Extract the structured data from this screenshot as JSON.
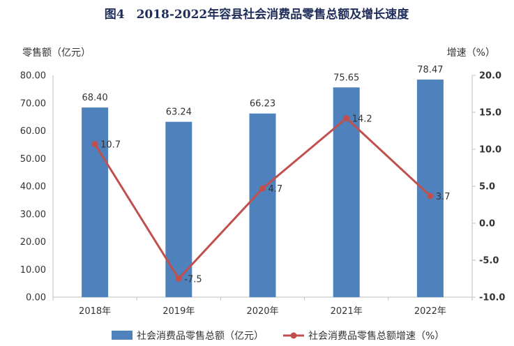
{
  "chart_data": {
    "type": "bar",
    "title": "图4　2018-2022年容县社会消费品零售总额及增长速度",
    "ylabel_left": "零售额（亿元）",
    "ylabel_right": "增速（%）",
    "categories": [
      "2018年",
      "2019年",
      "2020年",
      "2021年",
      "2022年"
    ],
    "ylim_left": [
      0,
      80
    ],
    "ylim_right": [
      -10,
      20
    ],
    "yticks_left": [
      "0.00",
      "10.00",
      "20.00",
      "30.00",
      "40.00",
      "50.00",
      "60.00",
      "70.00",
      "80.00"
    ],
    "yticks_right": [
      "-10.0",
      "-5.0",
      "0.0",
      "5.0",
      "10.0",
      "15.0",
      "20.0"
    ],
    "series": [
      {
        "name": "社会消费品零售总额（亿元）",
        "type": "bar",
        "axis": "left",
        "color": "#4f81bd",
        "values": [
          68.4,
          63.24,
          66.23,
          75.65,
          78.47
        ],
        "labels": [
          "68.40",
          "63.24",
          "66.23",
          "75.65",
          "78.47"
        ]
      },
      {
        "name": "社会消费品零售总额增速（%）",
        "type": "line",
        "axis": "right",
        "color": "#c0504d",
        "values": [
          10.7,
          -7.5,
          4.7,
          14.2,
          3.7
        ],
        "labels": [
          "10.7",
          "-7.5",
          "4.7",
          "14.2",
          "3.7"
        ]
      }
    ],
    "grid": false,
    "legend": "bottom"
  }
}
